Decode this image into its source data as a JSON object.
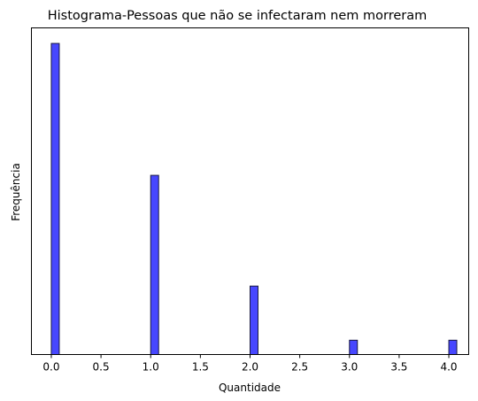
{
  "chart_data": {
    "type": "bar",
    "title": "Histograma-Pessoas que não se infectaram nem morreram",
    "xlabel": "Quantidade",
    "ylabel": "Frequência",
    "xlim": [
      -0.2,
      4.2
    ],
    "ylim": [
      0,
      1.05
    ],
    "xticks": [
      "0.0",
      "0.5",
      "1.0",
      "1.5",
      "2.0",
      "2.5",
      "3.0",
      "3.5",
      "4.0"
    ],
    "yticks_shown": false,
    "grid": false,
    "bar_color": "#0000ff",
    "bar_edge_color": "#1a1a40",
    "bars": [
      {
        "x": 0.0,
        "value": 1.0
      },
      {
        "x": 1.0,
        "value": 0.576
      },
      {
        "x": 2.0,
        "value": 0.22
      },
      {
        "x": 3.0,
        "value": 0.046
      },
      {
        "x": 4.0,
        "value": 0.046
      }
    ],
    "bin_width": 0.08
  }
}
